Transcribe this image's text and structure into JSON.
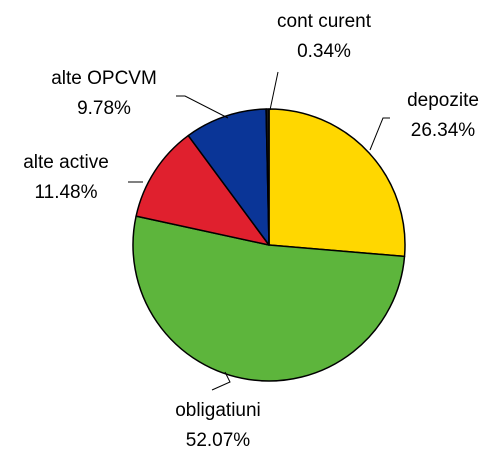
{
  "chart_data": {
    "type": "pie",
    "categories": [
      "depozite",
      "obligatiuni",
      "alte active",
      "alte OPCVM",
      "cont curent"
    ],
    "values": [
      26.34,
      52.07,
      11.48,
      9.78,
      0.34
    ],
    "value_labels": [
      "26.34%",
      "52.07%",
      "11.48%",
      "9.78%",
      "0.34%"
    ],
    "colors": [
      "#ffd700",
      "#5db53c",
      "#e0202e",
      "#0a3597",
      "#1a1a1a"
    ]
  }
}
